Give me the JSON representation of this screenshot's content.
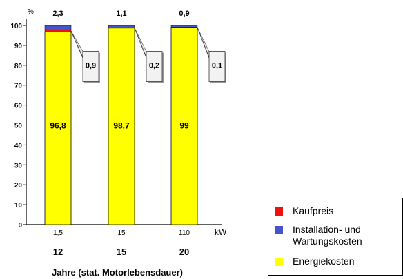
{
  "chart_data": {
    "type": "bar",
    "stacked": true,
    "y_unit_label": "%",
    "ylim": [
      0,
      100
    ],
    "y_ticks": [
      "0",
      "10",
      "20",
      "30",
      "40",
      "50",
      "60",
      "70",
      "80",
      "90",
      "100"
    ],
    "x_unit_label": "kW",
    "xlabel": "Jahre (stat. Motorlebensdauer)",
    "categories": [
      "1,5",
      "15",
      "110"
    ],
    "years": [
      "12",
      "15",
      "20"
    ],
    "series": [
      {
        "name": "Energiekosten",
        "color": "#ffff00",
        "values": [
          96.8,
          98.7,
          99
        ]
      },
      {
        "name": "Kaufpreis",
        "color": "#ee1111",
        "values": [
          0.9,
          0.2,
          0.1
        ]
      },
      {
        "name": "Installation- und Wartungskosten",
        "color": "#4455cc",
        "values": [
          2.3,
          1.1,
          0.9
        ]
      }
    ],
    "labels": {
      "energy": [
        "96,8",
        "98,7",
        "99"
      ],
      "top": [
        "2,3",
        "1,1",
        "0,9"
      ],
      "callout": [
        "0,9",
        "0,2",
        "0,1"
      ]
    },
    "legend": {
      "position": "bottom-right",
      "items": [
        {
          "name": "Kaufpreis",
          "color": "#ee1111"
        },
        {
          "name": "Installation- und Wartungskosten",
          "color": "#4455cc"
        },
        {
          "name": "Energiekosten",
          "color": "#ffff00"
        }
      ]
    },
    "grid": false
  }
}
